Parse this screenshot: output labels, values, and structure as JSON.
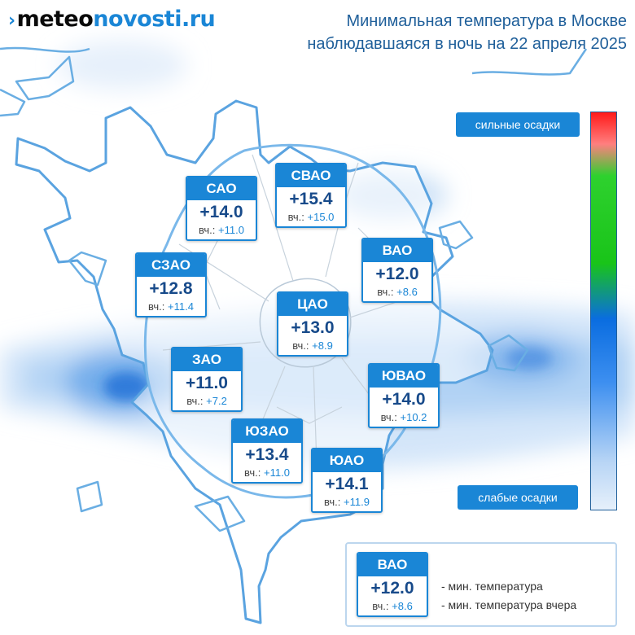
{
  "site": {
    "logo_part1": "meteo",
    "logo_part2": "novosti.ru"
  },
  "title": {
    "line1": "Минимальная температура в Москве",
    "line2": "наблюдавшаяся в ночь на 22 апреля 2025"
  },
  "districts": [
    {
      "name": "САО",
      "temp": "+14.0",
      "y_label": "вч.:",
      "y_value": "+11.0"
    },
    {
      "name": "СВАО",
      "temp": "+15.4",
      "y_label": "вч.:",
      "y_value": "+15.0"
    },
    {
      "name": "ВАО",
      "temp": "+12.0",
      "y_label": "вч.:",
      "y_value": "+8.6"
    },
    {
      "name": "СЗАО",
      "temp": "+12.8",
      "y_label": "вч.:",
      "y_value": "+11.4"
    },
    {
      "name": "ЦАО",
      "temp": "+13.0",
      "y_label": "вч.:",
      "y_value": "+8.9"
    },
    {
      "name": "ЗАО",
      "temp": "+11.0",
      "y_label": "вч.:",
      "y_value": "+7.2"
    },
    {
      "name": "ЮВАО",
      "temp": "+14.0",
      "y_label": "вч.:",
      "y_value": "+10.2"
    },
    {
      "name": "ЮЗАО",
      "temp": "+13.4",
      "y_label": "вч.:",
      "y_value": "+11.0"
    },
    {
      "name": "ЮАО",
      "temp": "+14.1",
      "y_label": "вч.:",
      "y_value": "+11.9"
    }
  ],
  "precip_scale": {
    "top_label": "сильные осадки",
    "bottom_label": "слабые осадки",
    "colors": [
      "#ff1a1a",
      "#2ed12e",
      "#0a6de0",
      "#e6f0fb"
    ]
  },
  "legend": {
    "sample": {
      "name": "ВАО",
      "temp": "+12.0",
      "y_label": "вч.:",
      "y_value": "+8.6"
    },
    "line1": "- мин. температура",
    "line2": "- мин. температура вчера"
  },
  "colors": {
    "accent": "#1a86d6",
    "title": "#1f5f9a",
    "temp": "#174a8a"
  }
}
